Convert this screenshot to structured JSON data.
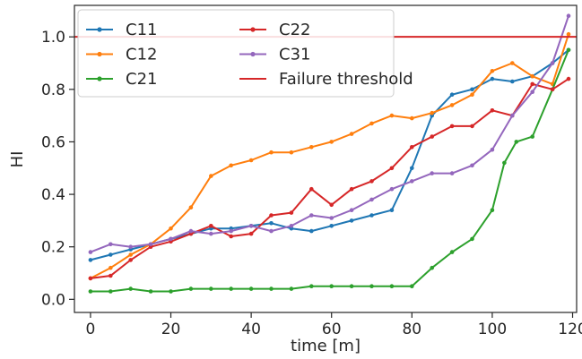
{
  "chart_data": {
    "type": "line",
    "title": "",
    "xlabel": "time [m]",
    "ylabel": "HI",
    "xlim": [
      -4,
      121
    ],
    "ylim": [
      -0.05,
      1.12
    ],
    "xticks": [
      0,
      20,
      40,
      60,
      80,
      100,
      120
    ],
    "xtick_labels": [
      "0",
      "20",
      "40",
      "60",
      "80",
      "100",
      "120"
    ],
    "yticks": [
      0.0,
      0.2,
      0.4,
      0.6,
      0.8,
      1.0
    ],
    "ytick_labels": [
      "0.0",
      "0.2",
      "0.4",
      "0.6",
      "0.8",
      "1.0"
    ],
    "grid": false,
    "legend": {
      "placement": "top-left",
      "columns": 2
    },
    "threshold": {
      "name": "Failure threshold",
      "y": 1.0,
      "color": "#d62728"
    },
    "series": [
      {
        "name": "C11",
        "color": "#1f77b4",
        "x": [
          0,
          5,
          10,
          15,
          20,
          25,
          30,
          35,
          40,
          45,
          50,
          55,
          60,
          65,
          70,
          75,
          80,
          85,
          90,
          95,
          100,
          105,
          110,
          115,
          119
        ],
        "y": [
          0.15,
          0.17,
          0.19,
          0.21,
          0.23,
          0.25,
          0.27,
          0.27,
          0.28,
          0.29,
          0.27,
          0.26,
          0.28,
          0.3,
          0.32,
          0.34,
          0.5,
          0.7,
          0.78,
          0.8,
          0.84,
          0.83,
          0.85,
          0.9,
          0.95
        ]
      },
      {
        "name": "C12",
        "color": "#ff7f0e",
        "x": [
          0,
          5,
          10,
          15,
          20,
          25,
          30,
          35,
          40,
          45,
          50,
          55,
          60,
          65,
          70,
          75,
          80,
          85,
          90,
          95,
          100,
          105,
          110,
          115,
          119
        ],
        "y": [
          0.08,
          0.12,
          0.17,
          0.21,
          0.27,
          0.35,
          0.47,
          0.51,
          0.53,
          0.56,
          0.56,
          0.58,
          0.6,
          0.63,
          0.67,
          0.7,
          0.69,
          0.71,
          0.74,
          0.78,
          0.87,
          0.9,
          0.85,
          0.82,
          1.01
        ]
      },
      {
        "name": "C21",
        "color": "#2ca02c",
        "x": [
          0,
          5,
          10,
          15,
          20,
          25,
          30,
          35,
          40,
          45,
          50,
          55,
          60,
          65,
          70,
          75,
          80,
          85,
          90,
          95,
          100,
          103,
          106,
          110,
          115,
          119
        ],
        "y": [
          0.03,
          0.03,
          0.04,
          0.03,
          0.03,
          0.04,
          0.04,
          0.04,
          0.04,
          0.04,
          0.04,
          0.05,
          0.05,
          0.05,
          0.05,
          0.05,
          0.05,
          0.12,
          0.18,
          0.23,
          0.34,
          0.52,
          0.6,
          0.62,
          0.8,
          0.95
        ]
      },
      {
        "name": "C22",
        "color": "#d62728",
        "x": [
          0,
          5,
          10,
          15,
          20,
          25,
          30,
          35,
          40,
          45,
          50,
          55,
          60,
          65,
          70,
          75,
          80,
          85,
          90,
          95,
          100,
          105,
          110,
          115,
          119
        ],
        "y": [
          0.08,
          0.09,
          0.15,
          0.2,
          0.22,
          0.25,
          0.28,
          0.24,
          0.25,
          0.32,
          0.33,
          0.42,
          0.36,
          0.42,
          0.45,
          0.5,
          0.58,
          0.62,
          0.66,
          0.66,
          0.72,
          0.7,
          0.82,
          0.8,
          0.84
        ]
      },
      {
        "name": "C31",
        "color": "#9467bd",
        "x": [
          0,
          5,
          10,
          15,
          20,
          25,
          30,
          35,
          40,
          45,
          50,
          55,
          60,
          65,
          70,
          75,
          80,
          85,
          90,
          95,
          100,
          105,
          110,
          115,
          119
        ],
        "y": [
          0.18,
          0.21,
          0.2,
          0.21,
          0.23,
          0.26,
          0.25,
          0.26,
          0.28,
          0.26,
          0.28,
          0.32,
          0.31,
          0.34,
          0.38,
          0.42,
          0.45,
          0.48,
          0.48,
          0.51,
          0.57,
          0.7,
          0.79,
          0.9,
          1.08
        ]
      }
    ]
  }
}
